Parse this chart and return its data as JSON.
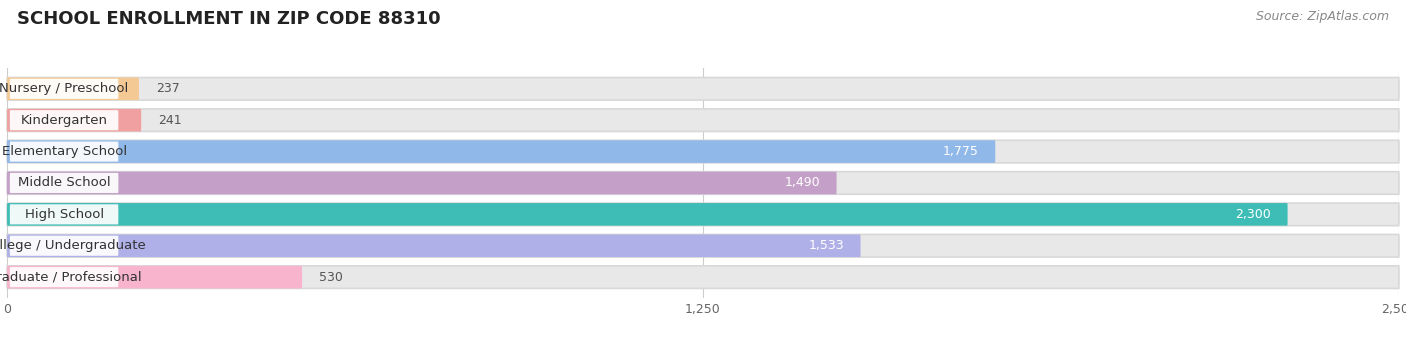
{
  "title": "SCHOOL ENROLLMENT IN ZIP CODE 88310",
  "source": "Source: ZipAtlas.com",
  "categories": [
    "Nursery / Preschool",
    "Kindergarten",
    "Elementary School",
    "Middle School",
    "High School",
    "College / Undergraduate",
    "Graduate / Professional"
  ],
  "values": [
    237,
    241,
    1775,
    1490,
    2300,
    1533,
    530
  ],
  "bar_colors": [
    "#f5c994",
    "#f0a0a0",
    "#90b8e8",
    "#c4a0c8",
    "#3dbdb5",
    "#b0b0e8",
    "#f8b4cc"
  ],
  "xlim": [
    0,
    2500
  ],
  "xticks": [
    0,
    1250,
    2500
  ],
  "title_fontsize": 13,
  "source_fontsize": 9,
  "label_fontsize": 9.5,
  "value_fontsize": 9,
  "background_color": "#ffffff",
  "bar_bg_color": "#e8e8e8",
  "row_bg": "#f5f5f5"
}
